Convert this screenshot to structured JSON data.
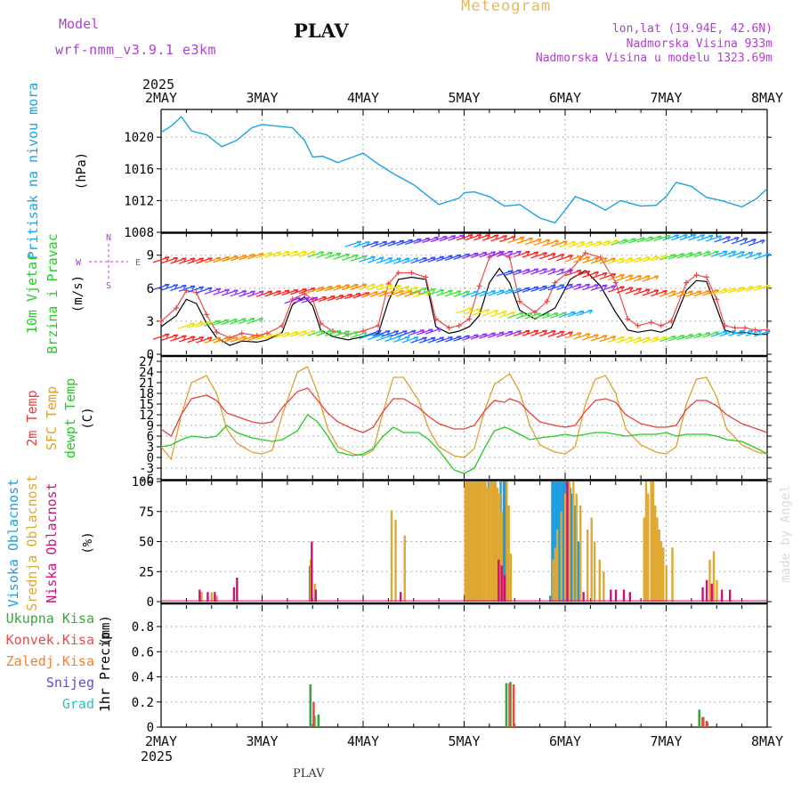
{
  "header": {
    "model_label": "Model",
    "model_name": "wrf-nmm_v3.9.1 e3km",
    "station": "PLAV",
    "title": "Meteogram",
    "lonlat": "lon,lat (19.94E, 42.6N)",
    "elevation": "Nadmorska Visina 933m",
    "model_elevation": "Nadmorska Visina u modelu 1323.69m",
    "footer_station": "PLAV",
    "watermark": "made by Angel"
  },
  "time_axis": {
    "year": "2025",
    "labels": [
      "2MAY",
      "3MAY",
      "4MAY",
      "5MAY",
      "6MAY",
      "7MAY",
      "8MAY"
    ]
  },
  "colors": {
    "pressure": "#1aa3e8",
    "temp2m": "#e8403a",
    "sfc": "#e0a030",
    "dewpt": "#22cc22",
    "high_cloud": "#1a9ee0",
    "mid_cloud": "#e0a830",
    "low_cloud": "#d0107a",
    "total_precip": "#3aa53a",
    "conv_precip": "#e84a4a",
    "frozen": "#f08030",
    "snow": "#5050e0",
    "graupel": "#30c0c0",
    "wind_speed": "#000000",
    "gust": "#e84a4a",
    "wind_label": "#22cc22",
    "compass": "#b040d0"
  },
  "chart_data": [
    {
      "type": "line",
      "name": "pressure",
      "ylabel_main": "Pritisak na nivou mora",
      "ylabel_unit": "(hPa)",
      "yticks": [
        "1008",
        "1012",
        "1016",
        "1020"
      ],
      "ylim": [
        1008,
        1023.5
      ],
      "x_days": [
        0.0,
        0.1,
        0.2,
        0.3,
        0.45,
        0.6,
        0.75,
        0.9,
        1.0,
        1.15,
        1.3,
        1.42,
        1.5,
        1.6,
        1.75,
        1.9,
        2.0,
        2.15,
        2.3,
        2.5,
        2.75,
        2.95,
        3.0,
        3.1,
        3.25,
        3.4,
        3.55,
        3.75,
        3.9,
        4.0,
        4.1,
        4.25,
        4.4,
        4.55,
        4.75,
        4.9,
        5.0,
        5.1,
        5.25,
        5.4,
        5.55,
        5.75,
        5.9,
        6.0
      ],
      "values": [
        1020.6,
        1021.4,
        1022.6,
        1020.8,
        1020.3,
        1018.8,
        1019.6,
        1021.2,
        1021.6,
        1021.4,
        1021.2,
        1019.6,
        1017.5,
        1017.6,
        1016.8,
        1017.5,
        1018.0,
        1016.6,
        1015.4,
        1014.0,
        1011.5,
        1012.3,
        1013.0,
        1013.1,
        1012.5,
        1011.3,
        1011.5,
        1009.8,
        1009.2,
        1010.8,
        1012.5,
        1011.8,
        1010.8,
        1012.0,
        1011.3,
        1011.4,
        1012.5,
        1014.3,
        1013.8,
        1012.4,
        1012.0,
        1011.2,
        1012.3,
        1013.5
      ]
    },
    {
      "type": "line",
      "name": "wind",
      "ylabel_main": "10m Vjetar",
      "ylabel_main2": "Brzina i Pravac",
      "ylabel_unit": "(m/s)",
      "compass": {
        "n": "N",
        "s": "S",
        "w": "W",
        "e": "E"
      },
      "yticks": [
        "0",
        "3",
        "6",
        "9"
      ],
      "ylim": [
        0,
        11
      ],
      "x_days": [
        0.0,
        0.15,
        0.25,
        0.35,
        0.45,
        0.55,
        0.68,
        0.8,
        0.95,
        1.05,
        1.2,
        1.3,
        1.42,
        1.5,
        1.58,
        1.7,
        1.85,
        2.0,
        2.15,
        2.25,
        2.35,
        2.48,
        2.62,
        2.72,
        2.85,
        2.95,
        3.05,
        3.15,
        3.25,
        3.35,
        3.45,
        3.55,
        3.7,
        3.82,
        3.9,
        4.05,
        4.2,
        4.35,
        4.5,
        4.62,
        4.72,
        4.85,
        4.95,
        5.05,
        5.2,
        5.3,
        5.4,
        5.5,
        5.58,
        5.68,
        5.78,
        5.88,
        6.0
      ],
      "speed": [
        2.5,
        3.5,
        5.0,
        4.6,
        2.8,
        1.5,
        0.8,
        1.2,
        1.1,
        1.3,
        2.0,
        4.5,
        5.2,
        4.4,
        2.2,
        1.6,
        1.3,
        1.6,
        1.9,
        4.8,
        6.8,
        7.0,
        6.8,
        2.5,
        1.9,
        2.1,
        2.5,
        3.5,
        6.5,
        7.8,
        6.5,
        4.0,
        3.2,
        3.8,
        4.2,
        6.8,
        7.6,
        6.2,
        3.8,
        2.2,
        2.0,
        2.2,
        2.0,
        2.4,
        5.8,
        6.7,
        6.6,
        4.2,
        2.2,
        1.9,
        2.0,
        1.8,
        1.8
      ],
      "gust": [
        3.0,
        4.2,
        5.8,
        5.6,
        3.6,
        2.0,
        1.5,
        1.9,
        1.7,
        1.9,
        2.6,
        5.0,
        5.5,
        5.0,
        2.8,
        2.1,
        1.8,
        2.1,
        2.6,
        6.4,
        7.4,
        7.4,
        7.0,
        3.2,
        2.4,
        2.6,
        3.2,
        6.2,
        8.8,
        9.2,
        8.8,
        4.8,
        3.8,
        4.8,
        6.5,
        7.6,
        9.2,
        8.8,
        6.5,
        3.2,
        2.6,
        2.9,
        2.6,
        3.0,
        6.5,
        7.2,
        7.0,
        5.0,
        2.6,
        2.4,
        2.4,
        2.2,
        2.2
      ]
    },
    {
      "type": "line",
      "name": "temperature",
      "ylabel_main": "2m Temp",
      "ylabel_main2": "SFC Temp",
      "ylabel_main3": "dewpt Temp",
      "ylabel_unit": "(C)",
      "yticks": [
        "-6",
        "-3",
        "0",
        "3",
        "6",
        "9",
        "12",
        "15",
        "18",
        "21",
        "24",
        "27"
      ],
      "ylim": [
        -6,
        28
      ],
      "x_days": [
        0.0,
        0.1,
        0.2,
        0.3,
        0.45,
        0.55,
        0.65,
        0.75,
        0.9,
        1.0,
        1.1,
        1.2,
        1.35,
        1.45,
        1.55,
        1.65,
        1.75,
        1.9,
        2.0,
        2.1,
        2.2,
        2.3,
        2.4,
        2.55,
        2.65,
        2.75,
        2.9,
        3.0,
        3.1,
        3.2,
        3.3,
        3.4,
        3.45,
        3.55,
        3.65,
        3.75,
        3.9,
        4.0,
        4.1,
        4.2,
        4.3,
        4.4,
        4.5,
        4.6,
        4.75,
        4.9,
        5.0,
        5.1,
        5.2,
        5.3,
        5.4,
        5.5,
        5.6,
        5.75,
        5.9,
        6.0
      ],
      "t2m": [
        8.0,
        6.0,
        12.0,
        16.5,
        17.5,
        16.0,
        12.5,
        11.5,
        10.0,
        9.5,
        10.0,
        14.0,
        18.5,
        19.5,
        16.0,
        12.5,
        10.0,
        8.0,
        7.0,
        8.5,
        13.0,
        16.5,
        16.5,
        14.0,
        11.5,
        9.5,
        8.0,
        8.0,
        9.0,
        13.0,
        16.0,
        15.5,
        16.5,
        15.5,
        12.5,
        10.0,
        9.0,
        8.5,
        9.0,
        13.0,
        16.0,
        16.5,
        15.5,
        12.0,
        9.5,
        8.5,
        8.5,
        9.0,
        13.5,
        16.0,
        16.0,
        14.5,
        12.0,
        9.5,
        8.0,
        7.0
      ],
      "sfc": [
        3.0,
        -0.5,
        12.0,
        21.0,
        23.0,
        18.0,
        8.0,
        4.0,
        1.5,
        1.0,
        2.0,
        12.0,
        24.0,
        25.5,
        18.0,
        8.0,
        3.0,
        1.0,
        0.5,
        2.0,
        13.0,
        22.5,
        22.5,
        16.0,
        8.0,
        3.0,
        0.5,
        0.0,
        2.5,
        13.0,
        20.5,
        22.5,
        23.5,
        18.5,
        9.0,
        3.5,
        1.5,
        1.0,
        3.0,
        15.0,
        22.0,
        23.0,
        18.0,
        8.0,
        3.5,
        1.5,
        1.0,
        3.0,
        15.0,
        22.0,
        22.5,
        17.0,
        8.0,
        3.5,
        1.5,
        1.0
      ],
      "dewpt": [
        3.0,
        3.5,
        5.0,
        6.0,
        5.5,
        6.0,
        9.0,
        7.0,
        5.5,
        5.0,
        4.5,
        5.0,
        7.5,
        12.0,
        10.0,
        6.0,
        1.5,
        0.5,
        1.0,
        2.5,
        6.0,
        8.5,
        7.0,
        7.0,
        5.0,
        2.0,
        -3.5,
        -4.5,
        -3.0,
        2.5,
        7.5,
        8.5,
        8.0,
        6.5,
        5.0,
        5.5,
        6.0,
        6.5,
        6.0,
        6.5,
        7.0,
        7.0,
        6.5,
        6.0,
        6.5,
        6.5,
        7.0,
        6.0,
        6.5,
        6.5,
        6.5,
        6.0,
        5.0,
        4.5,
        2.5,
        1.0
      ]
    },
    {
      "type": "bar",
      "name": "cloud_cover",
      "ylabel_main": "Visoka Oblacnost",
      "ylabel_main2": "Srednja Oblacnost",
      "ylabel_main3": "Niska Oblacnost",
      "ylabel_unit": "(%)",
      "yticks": [
        "0",
        "25",
        "50",
        "75",
        "100"
      ],
      "ylim": [
        0,
        100
      ],
      "series": [
        {
          "name": "Visoka Oblacnost",
          "x_days": [
            1.47,
            3.02,
            3.04,
            3.06,
            3.08,
            3.1,
            3.12,
            3.14,
            3.16,
            3.2,
            3.24,
            3.3,
            3.36,
            3.39,
            3.41,
            3.85,
            3.87,
            3.89,
            3.91,
            3.93,
            3.95,
            3.97,
            3.99,
            4.01,
            4.03,
            4.05,
            4.07,
            4.09,
            4.11,
            4.13
          ],
          "values": [
            30,
            100,
            100,
            100,
            100,
            100,
            100,
            100,
            100,
            100,
            100,
            100,
            100,
            100,
            100,
            5,
            100,
            100,
            100,
            100,
            100,
            100,
            100,
            100,
            100,
            95,
            90,
            80,
            65,
            50
          ]
        },
        {
          "name": "Srednja Oblacnost",
          "x_days": [
            0.4,
            0.5,
            0.55,
            1.48,
            1.52,
            2.28,
            2.32,
            2.41,
            3.01,
            3.03,
            3.05,
            3.07,
            3.09,
            3.11,
            3.13,
            3.15,
            3.17,
            3.19,
            3.21,
            3.23,
            3.25,
            3.27,
            3.29,
            3.31,
            3.33,
            3.35,
            3.37,
            3.42,
            3.44,
            3.46,
            3.88,
            3.9,
            3.92,
            3.96,
            4.0,
            4.04,
            4.08,
            4.11,
            4.15,
            4.22,
            4.26,
            4.29,
            4.34,
            4.38,
            4.78,
            4.8,
            4.82,
            4.85,
            4.87,
            4.89,
            4.91,
            4.93,
            4.95,
            4.97,
            5.0,
            5.06,
            5.43,
            5.47,
            5.5
          ],
          "values": [
            8,
            8,
            5,
            35,
            15,
            76,
            68,
            55,
            100,
            100,
            100,
            100,
            100,
            100,
            100,
            100,
            100,
            100,
            100,
            95,
            100,
            100,
            100,
            100,
            95,
            90,
            75,
            100,
            80,
            40,
            35,
            45,
            60,
            75,
            90,
            100,
            100,
            90,
            80,
            60,
            70,
            50,
            35,
            25,
            70,
            100,
            90,
            100,
            100,
            80,
            70,
            60,
            50,
            45,
            30,
            45,
            35,
            42,
            18
          ]
        },
        {
          "name": "Niska Oblacnost",
          "x_days": [
            0.38,
            0.46,
            0.53,
            0.72,
            0.75,
            1.49,
            1.53,
            2.37,
            3.34,
            3.37,
            3.4,
            4.02,
            4.18,
            4.45,
            4.5,
            4.58,
            4.64,
            5.36,
            5.4,
            5.45,
            5.55,
            5.63
          ],
          "values": [
            10,
            8,
            8,
            12,
            20,
            50,
            10,
            8,
            35,
            30,
            22,
            100,
            8,
            10,
            10,
            10,
            8,
            12,
            18,
            15,
            10,
            10
          ]
        }
      ]
    },
    {
      "type": "bar",
      "name": "precipitation",
      "ylabel_main": "1hr Precip",
      "ylabel_unit": "(mm)",
      "legend": [
        "Ukupna Kisa",
        "Konvek.Kisa",
        "Zaledj.Kisa",
        "Snijeg",
        "Grad"
      ],
      "yticks": [
        "0",
        "0.2",
        "0.4",
        "0.6",
        "0.8"
      ],
      "ylim": [
        0,
        0.97
      ],
      "series": [
        {
          "name": "Ukupna Kisa",
          "x_days": [
            1.48,
            1.52,
            1.56,
            3.42,
            3.46,
            3.5,
            5.33,
            5.37,
            5.41
          ],
          "values": [
            0.34,
            0.09,
            0.1,
            0.35,
            0.36,
            0.03,
            0.14,
            0.08,
            0.04
          ]
        },
        {
          "name": "Konvek.Kisa",
          "x_days": [
            1.49,
            3.43,
            3.47,
            5.34,
            5.38
          ],
          "values": [
            0.2,
            0.35,
            0.34,
            0.08,
            0.05
          ]
        }
      ]
    }
  ]
}
